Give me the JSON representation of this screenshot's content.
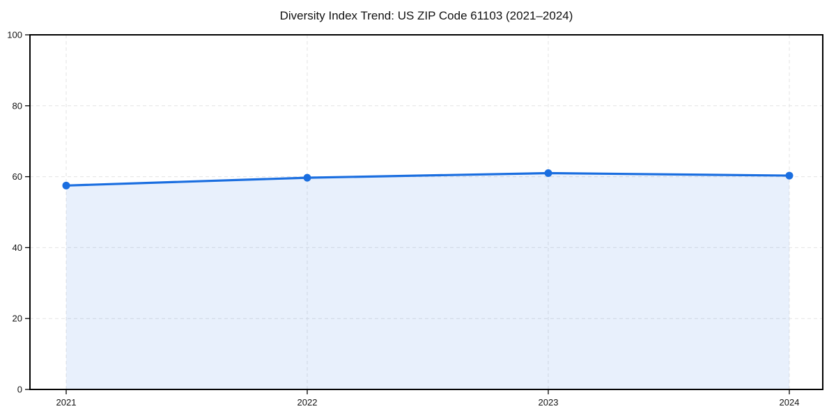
{
  "chart_data": {
    "type": "area",
    "title": "Diversity Index Trend: US ZIP Code 61103 (2021–2024)",
    "x": [
      2021,
      2022,
      2023,
      2024
    ],
    "series": [
      {
        "name": "Diversity Index",
        "values": [
          57.5,
          59.7,
          61.0,
          60.3
        ]
      }
    ],
    "ylim": [
      0,
      100
    ],
    "yticks": [
      0,
      20,
      40,
      60,
      80,
      100
    ],
    "grid": {
      "style": "dashed",
      "axes": "both",
      "color": "#e3e3e3"
    },
    "legend": "none",
    "colors": {
      "line": "#1a6ee0",
      "marker": "#1a6ee0",
      "fill": "rgba(26,110,224,0.10)",
      "frame": "#000000",
      "tick": "#000000",
      "text": "#111111",
      "background": "#ffffff"
    }
  }
}
